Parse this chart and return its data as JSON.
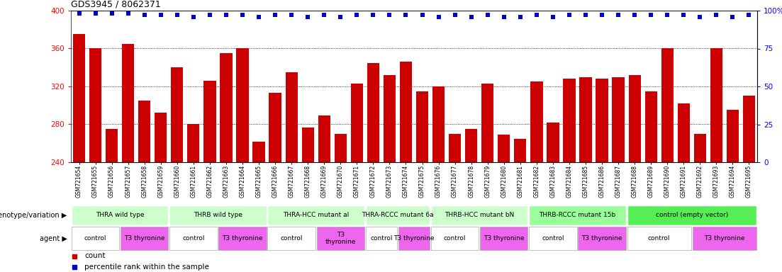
{
  "title": "GDS3945 / 8062371",
  "samples": [
    "GSM721654",
    "GSM721655",
    "GSM721656",
    "GSM721657",
    "GSM721658",
    "GSM721659",
    "GSM721660",
    "GSM721661",
    "GSM721662",
    "GSM721663",
    "GSM721664",
    "GSM721665",
    "GSM721666",
    "GSM721667",
    "GSM721668",
    "GSM721669",
    "GSM721670",
    "GSM721671",
    "GSM721672",
    "GSM721673",
    "GSM721674",
    "GSM721675",
    "GSM721676",
    "GSM721677",
    "GSM721678",
    "GSM721679",
    "GSM721680",
    "GSM721681",
    "GSM721682",
    "GSM721683",
    "GSM721684",
    "GSM721685",
    "GSM721686",
    "GSM721687",
    "GSM721688",
    "GSM721689",
    "GSM721690",
    "GSM721691",
    "GSM721692",
    "GSM721693",
    "GSM721694",
    "GSM721695"
  ],
  "counts": [
    375,
    360,
    275,
    365,
    305,
    292,
    340,
    280,
    326,
    355,
    360,
    262,
    313,
    335,
    277,
    289,
    270,
    323,
    345,
    332,
    346,
    315,
    320,
    270,
    275,
    323,
    269,
    265,
    325,
    282,
    328,
    330,
    328,
    330,
    332,
    315,
    360,
    302,
    270,
    360,
    295,
    310
  ],
  "percentile_ranks": [
    98,
    98,
    98,
    98,
    97,
    97,
    97,
    96,
    97,
    97,
    97,
    96,
    97,
    97,
    96,
    97,
    96,
    97,
    97,
    97,
    97,
    97,
    96,
    97,
    96,
    97,
    96,
    96,
    97,
    96,
    97,
    97,
    97,
    97,
    97,
    97,
    97,
    97,
    96,
    97,
    96,
    97
  ],
  "y_min": 240,
  "y_max": 400,
  "y_ticks": [
    240,
    280,
    320,
    360,
    400
  ],
  "y_right_ticks": [
    0,
    25,
    50,
    75,
    100
  ],
  "bar_color": "#CC0000",
  "dot_color": "#0000CC",
  "genotype_groups": [
    {
      "label": "THRA wild type",
      "start": 0,
      "end": 6,
      "color": "#ccffcc"
    },
    {
      "label": "THRB wild type",
      "start": 6,
      "end": 12,
      "color": "#ccffcc"
    },
    {
      "label": "THRA-HCC mutant al",
      "start": 12,
      "end": 18,
      "color": "#ccffcc"
    },
    {
      "label": "THRA-RCCC mutant 6a",
      "start": 18,
      "end": 22,
      "color": "#ccffcc"
    },
    {
      "label": "THRB-HCC mutant bN",
      "start": 22,
      "end": 28,
      "color": "#ccffcc"
    },
    {
      "label": "THRB-RCCC mutant 15b",
      "start": 28,
      "end": 34,
      "color": "#99ff99"
    },
    {
      "label": "control (empty vector)",
      "start": 34,
      "end": 42,
      "color": "#55ee55"
    }
  ],
  "agent_groups": [
    {
      "label": "control",
      "start": 0,
      "end": 3,
      "color": "#ffffff"
    },
    {
      "label": "T3 thyronine",
      "start": 3,
      "end": 6,
      "color": "#ee66ee"
    },
    {
      "label": "control",
      "start": 6,
      "end": 9,
      "color": "#ffffff"
    },
    {
      "label": "T3 thyronine",
      "start": 9,
      "end": 12,
      "color": "#ee66ee"
    },
    {
      "label": "control",
      "start": 12,
      "end": 15,
      "color": "#ffffff"
    },
    {
      "label": "T3\nthyronine",
      "start": 15,
      "end": 18,
      "color": "#ee66ee"
    },
    {
      "label": "control",
      "start": 18,
      "end": 20,
      "color": "#ffffff"
    },
    {
      "label": "T3 thyronine",
      "start": 20,
      "end": 22,
      "color": "#ee66ee"
    },
    {
      "label": "control",
      "start": 22,
      "end": 25,
      "color": "#ffffff"
    },
    {
      "label": "T3 thyronine",
      "start": 25,
      "end": 28,
      "color": "#ee66ee"
    },
    {
      "label": "control",
      "start": 28,
      "end": 31,
      "color": "#ffffff"
    },
    {
      "label": "T3 thyronine",
      "start": 31,
      "end": 34,
      "color": "#ee66ee"
    },
    {
      "label": "control",
      "start": 34,
      "end": 38,
      "color": "#ffffff"
    },
    {
      "label": "T3 thyronine",
      "start": 38,
      "end": 42,
      "color": "#ee66ee"
    }
  ],
  "xlabel_genotype": "genotype/variation",
  "xlabel_agent": "agent",
  "legend_count_color": "#CC0000",
  "legend_pct_color": "#0000CC",
  "bg_color": "#ffffff"
}
